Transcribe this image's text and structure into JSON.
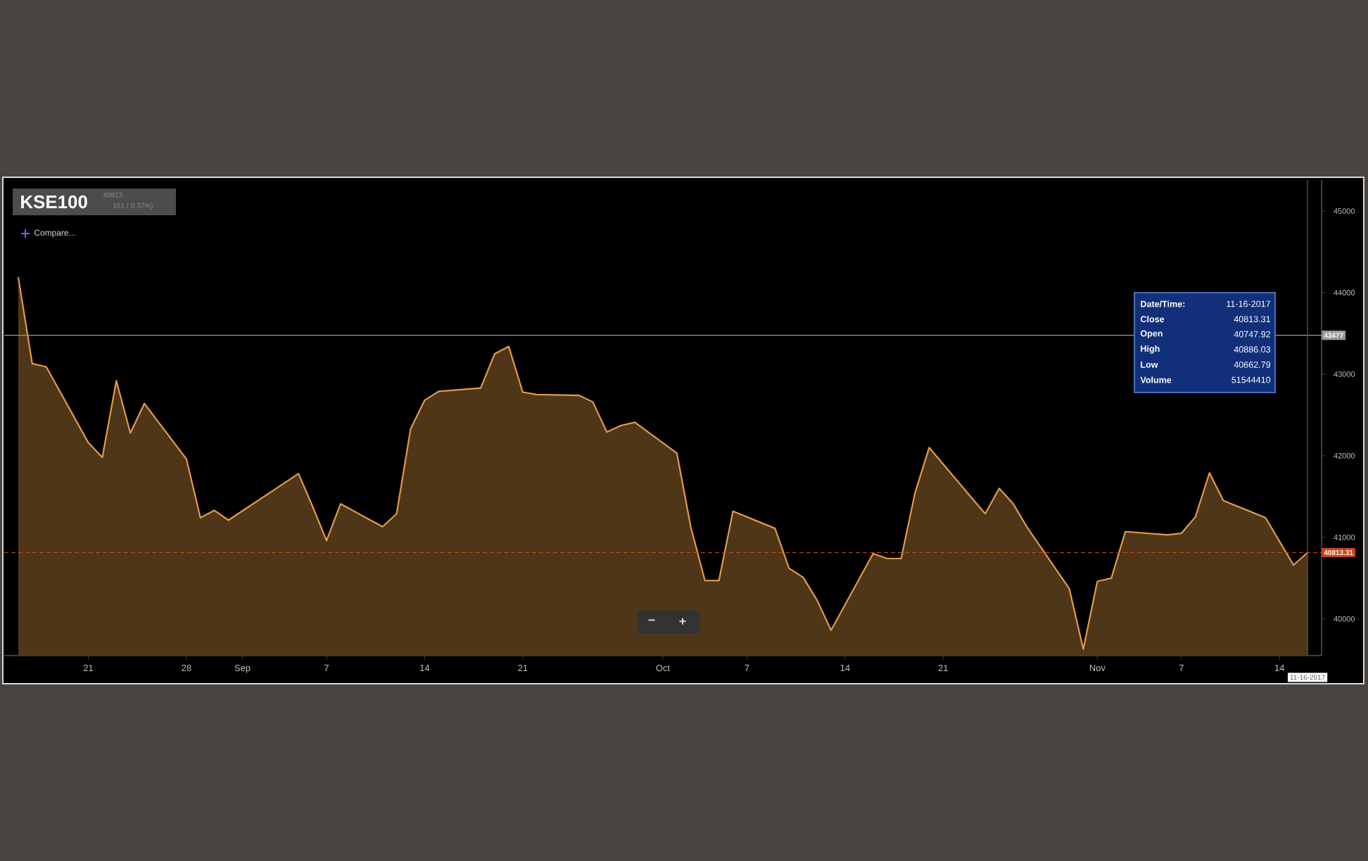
{
  "chart_data": {
    "type": "area",
    "title": "KSE100",
    "subtitle": "40813",
    "color": "#e39a46",
    "x": [
      "2017-08-16",
      "2017-08-17",
      "2017-08-18",
      "2017-08-21",
      "2017-08-22",
      "2017-08-23",
      "2017-08-24",
      "2017-08-25",
      "2017-08-28",
      "2017-08-29",
      "2017-08-30",
      "2017-08-31",
      "2017-09-05",
      "2017-09-06",
      "2017-09-07",
      "2017-09-08",
      "2017-09-11",
      "2017-09-12",
      "2017-09-13",
      "2017-09-14",
      "2017-09-15",
      "2017-09-18",
      "2017-09-19",
      "2017-09-20",
      "2017-09-21",
      "2017-09-22",
      "2017-09-25",
      "2017-09-26",
      "2017-09-27",
      "2017-09-28",
      "2017-09-29",
      "2017-10-02",
      "2017-10-03",
      "2017-10-04",
      "2017-10-05",
      "2017-10-06",
      "2017-10-09",
      "2017-10-10",
      "2017-10-11",
      "2017-10-12",
      "2017-10-13",
      "2017-10-16",
      "2017-10-17",
      "2017-10-18",
      "2017-10-19",
      "2017-10-20",
      "2017-10-23",
      "2017-10-24",
      "2017-10-25",
      "2017-10-26",
      "2017-10-27",
      "2017-10-30",
      "2017-10-31",
      "2017-11-01",
      "2017-11-02",
      "2017-11-03",
      "2017-11-06",
      "2017-11-07",
      "2017-11-08",
      "2017-11-09",
      "2017-11-10",
      "2017-11-13",
      "2017-11-14",
      "2017-11-15",
      "2017-11-16"
    ],
    "values": [
      44190,
      43130,
      43090,
      42160,
      41980,
      42920,
      42280,
      42640,
      41960,
      41240,
      41330,
      41210,
      41780,
      41380,
      40960,
      41410,
      41130,
      41290,
      42330,
      42680,
      42790,
      42830,
      43250,
      43340,
      42780,
      42750,
      42740,
      42660,
      42290,
      42370,
      42410,
      42030,
      41120,
      40470,
      40470,
      41320,
      41110,
      40620,
      40510,
      40230,
      39860,
      40800,
      40740,
      40740,
      41550,
      42100,
      41490,
      41290,
      41600,
      41410,
      41120,
      40370,
      39630,
      40460,
      40500,
      41070,
      41030,
      41050,
      41250,
      41790,
      41450,
      41240,
      40950,
      40660,
      40813.31
    ],
    "xlim": [
      "2017-08-15",
      "2017-11-17"
    ],
    "xticks": [
      {
        "value": "2017-08-21",
        "label": "21"
      },
      {
        "value": "2017-08-28",
        "label": "28"
      },
      {
        "value": "2017-09-01",
        "label": "Sep"
      },
      {
        "value": "2017-09-07",
        "label": "7"
      },
      {
        "value": "2017-09-14",
        "label": "14"
      },
      {
        "value": "2017-09-21",
        "label": "21"
      },
      {
        "value": "2017-10-01",
        "label": "Oct"
      },
      {
        "value": "2017-10-07",
        "label": "7"
      },
      {
        "value": "2017-10-14",
        "label": "14"
      },
      {
        "value": "2017-10-21",
        "label": "21"
      },
      {
        "value": "2017-11-01",
        "label": "Nov"
      },
      {
        "value": "2017-11-07",
        "label": "7"
      },
      {
        "value": "2017-11-14",
        "label": "14"
      }
    ],
    "ylim": [
      39550,
      45380
    ],
    "yticks": [
      40000,
      41000,
      42000,
      43000,
      44000,
      45000
    ],
    "ref_lines": [
      {
        "axis": "y",
        "value": 43477,
        "label": "43477",
        "color": "#9a9a9a",
        "line_style": "solid"
      },
      {
        "axis": "y",
        "value": 40813.31,
        "label": "40813.31",
        "color": "#c8461e",
        "line_style": "dashed"
      },
      {
        "axis": "x",
        "value": "2017-11-16",
        "label": "11-16-2017",
        "color": "#5a5a5a",
        "line_style": "solid"
      }
    ],
    "annotations": [
      "151 ( 0.37%)",
      "Compare...",
      "−",
      "+",
      "Date/Time:",
      "11-16-2017",
      "Close",
      "40813.31",
      "Open",
      "40747.92",
      "High",
      "40886.03",
      "Low",
      "40662.79",
      "Volume",
      "51544410"
    ]
  }
}
